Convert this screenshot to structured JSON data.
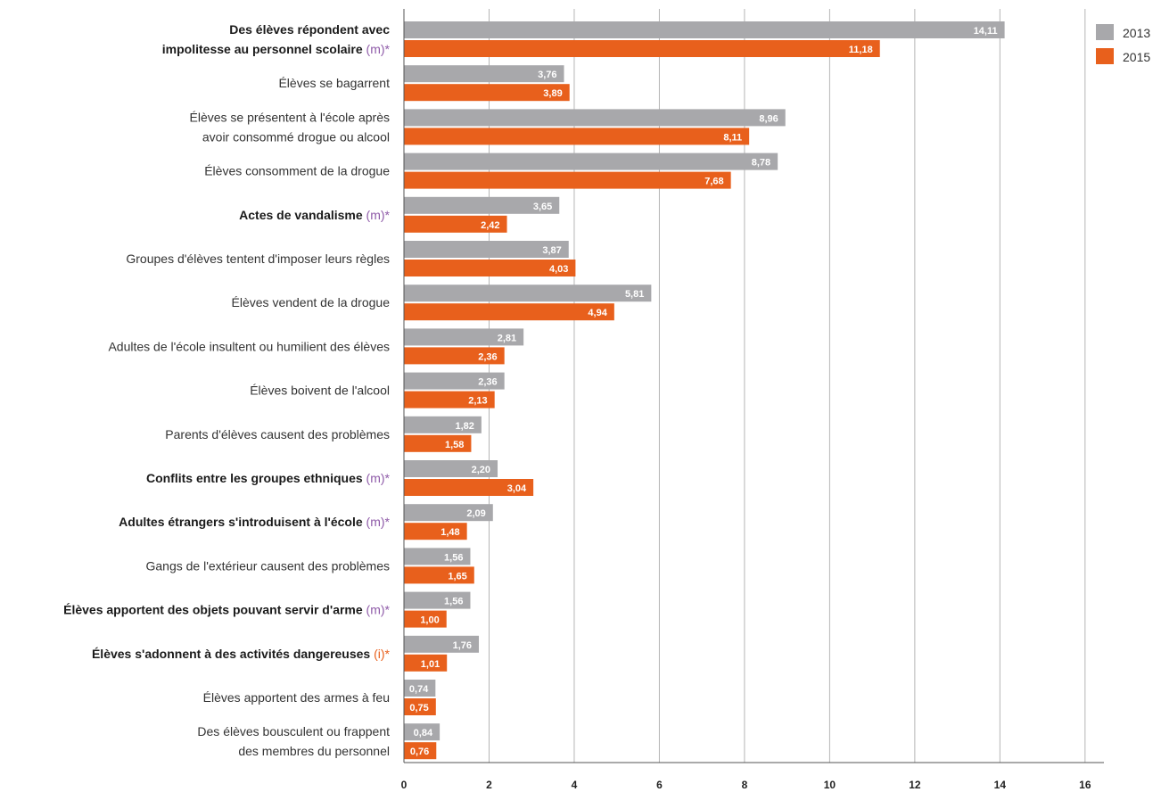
{
  "chart_data": {
    "type": "bar",
    "orientation": "horizontal",
    "xlim": [
      0,
      16
    ],
    "xticks": [
      0,
      2,
      4,
      6,
      8,
      10,
      12,
      14,
      16
    ],
    "grid": true,
    "legend_position": "top-right",
    "colors": {
      "2013": "#a8a8ab",
      "2015": "#e8601c",
      "tag_m": "#8e5aa8",
      "tag_i": "#e8601c"
    },
    "series": [
      {
        "name": "2013",
        "values": [
          14.11,
          3.76,
          8.96,
          8.78,
          3.65,
          3.87,
          5.81,
          2.81,
          2.36,
          1.82,
          2.2,
          2.09,
          1.56,
          1.56,
          1.76,
          0.74,
          0.84
        ],
        "labels": [
          "14,11",
          "3,76",
          "8,96",
          "8,78",
          "3,65",
          "3,87",
          "5,81",
          "2,81",
          "2,36",
          "1,82",
          "2,20",
          "2,09",
          "1,56",
          "1,56",
          "1,76",
          "0,74",
          "0,84"
        ]
      },
      {
        "name": "2015",
        "values": [
          11.18,
          3.89,
          8.11,
          7.68,
          2.42,
          4.03,
          4.94,
          2.36,
          2.13,
          1.58,
          3.04,
          1.48,
          1.65,
          1.0,
          1.01,
          0.75,
          0.76
        ],
        "labels": [
          "11,18",
          "3,89",
          "8,11",
          "7,68",
          "2,42",
          "4,03",
          "4,94",
          "2,36",
          "2,13",
          "1,58",
          "3,04",
          "1,48",
          "1,65",
          "1,00",
          "1,01",
          "0,75",
          "0,76"
        ]
      }
    ],
    "categories": [
      {
        "lines": [
          "Des élèves répondent avec",
          "impolitesse au personnel scolaire"
        ],
        "bold": true,
        "tag": "(m)*",
        "tag_type": "m"
      },
      {
        "lines": [
          "Élèves se bagarrent"
        ],
        "bold": false,
        "tag": "",
        "tag_type": ""
      },
      {
        "lines": [
          "Élèves se présentent à l'école après",
          "avoir consommé drogue ou alcool"
        ],
        "bold": false,
        "tag": "",
        "tag_type": ""
      },
      {
        "lines": [
          "Élèves consomment de la drogue"
        ],
        "bold": false,
        "tag": "",
        "tag_type": ""
      },
      {
        "lines": [
          "Actes de vandalisme"
        ],
        "bold": true,
        "tag": "(m)*",
        "tag_type": "m"
      },
      {
        "lines": [
          "Groupes d'élèves tentent d'imposer leurs règles"
        ],
        "bold": false,
        "tag": "",
        "tag_type": ""
      },
      {
        "lines": [
          "Élèves vendent de la drogue"
        ],
        "bold": false,
        "tag": "",
        "tag_type": ""
      },
      {
        "lines": [
          "Adultes de l'école insultent ou humilient des élèves"
        ],
        "bold": false,
        "tag": "",
        "tag_type": ""
      },
      {
        "lines": [
          "Élèves boivent de l'alcool"
        ],
        "bold": false,
        "tag": "",
        "tag_type": ""
      },
      {
        "lines": [
          "Parents d'élèves causent des problèmes"
        ],
        "bold": false,
        "tag": "",
        "tag_type": ""
      },
      {
        "lines": [
          "Conflits entre les groupes ethniques"
        ],
        "bold": true,
        "tag": "(m)*",
        "tag_type": "m"
      },
      {
        "lines": [
          "Adultes étrangers s'introduisent à l'école"
        ],
        "bold": true,
        "tag": "(m)*",
        "tag_type": "m"
      },
      {
        "lines": [
          "Gangs de l'extérieur causent des problèmes"
        ],
        "bold": false,
        "tag": "",
        "tag_type": ""
      },
      {
        "lines": [
          "Élèves apportent des objets pouvant servir d'arme"
        ],
        "bold": true,
        "tag": "(m)*",
        "tag_type": "m"
      },
      {
        "lines": [
          "Élèves s'adonnent à des activités dangereuses"
        ],
        "bold": true,
        "tag": "(i)*",
        "tag_type": "i"
      },
      {
        "lines": [
          "Élèves apportent des armes à feu"
        ],
        "bold": false,
        "tag": "",
        "tag_type": ""
      },
      {
        "lines": [
          "Des élèves bousculent ou frappent",
          "des membres du personnel"
        ],
        "bold": false,
        "tag": "",
        "tag_type": ""
      }
    ]
  }
}
